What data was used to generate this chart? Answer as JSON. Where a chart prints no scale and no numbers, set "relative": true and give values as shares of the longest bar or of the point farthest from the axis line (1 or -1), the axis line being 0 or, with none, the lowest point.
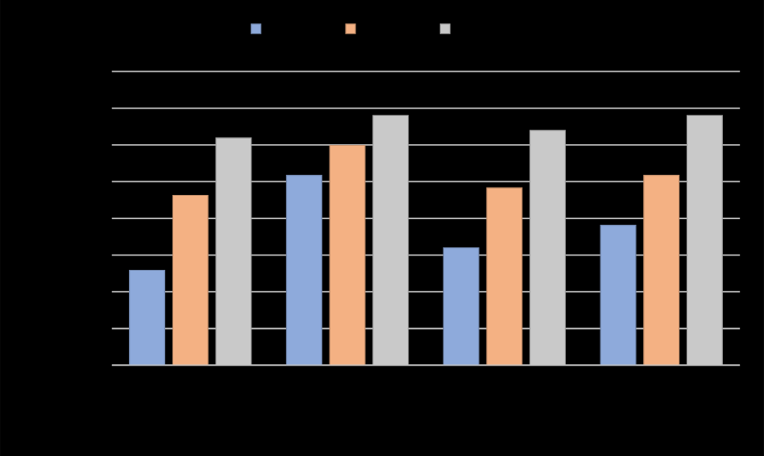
{
  "chart_data": {
    "type": "bar",
    "relative": true,
    "categories": [
      null,
      null,
      null,
      null
    ],
    "series": [
      {
        "color": "#8eaadb",
        "values": [
          0.38,
          0.76,
          0.47,
          0.56
        ]
      },
      {
        "color": "#f4b183",
        "values": [
          0.68,
          0.88,
          0.71,
          0.76
        ]
      },
      {
        "color": "#c9c9c9",
        "values": [
          0.91,
          1,
          0.94,
          1
        ]
      }
    ],
    "grid": "y"
  }
}
